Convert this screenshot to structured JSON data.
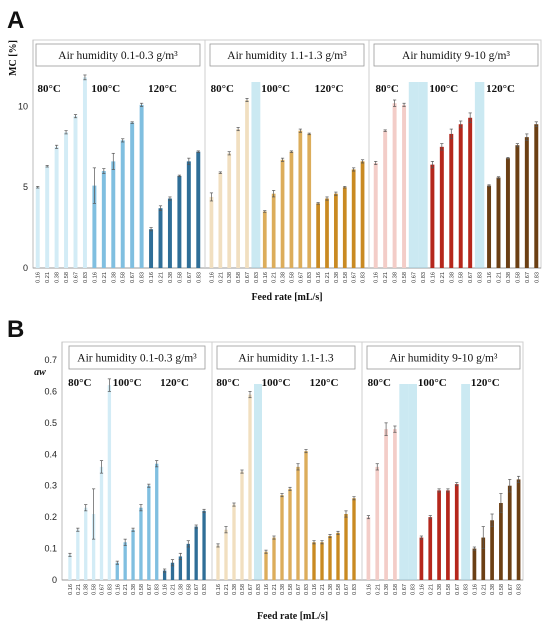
{
  "chart_data": [
    {
      "panel": "A",
      "type": "bar",
      "ylabel": "MC [%]",
      "xlabel": "Feed rate [mL/s]",
      "ylim": [
        0,
        13
      ],
      "yticks": [
        0,
        5,
        10
      ],
      "categories": [
        "0.16",
        "0.21",
        "0.38",
        "0.58",
        "0.67",
        "0.83"
      ],
      "groups": [
        {
          "humidity": "Air humidity 0.1-0.3 g/m³",
          "temperatures": [
            {
              "name": "80°C",
              "color": "#d3ecf6",
              "values": [
                5.0,
                6.3,
                7.5,
                8.4,
                9.4,
                11.8
              ],
              "errors": [
                0.05,
                0.05,
                0.1,
                0.1,
                0.1,
                0.15
              ]
            },
            {
              "name": "100°C",
              "color": "#80bfe0",
              "values": [
                5.1,
                6.0,
                6.6,
                7.9,
                9.0,
                10.1
              ],
              "errors": [
                1.1,
                0.15,
                0.5,
                0.1,
                0.05,
                0.1
              ]
            },
            {
              "name": "120°C",
              "color": "#2f6e97",
              "values": [
                2.4,
                3.7,
                4.3,
                5.7,
                6.6,
                7.2
              ],
              "errors": [
                0.1,
                0.15,
                0.1,
                0.05,
                0.2,
                0.05
              ]
            }
          ]
        },
        {
          "humidity": "Air humidity 1.1-1.3 g/m³",
          "temperatures": [
            {
              "name": "80°C",
              "color": "#f1dfc0",
              "values": [
                4.4,
                5.9,
                7.1,
                8.6,
                10.4,
                0
              ],
              "errors": [
                0.25,
                0.05,
                0.1,
                0.1,
                0.1,
                0
              ]
            },
            {
              "name": "100°C",
              "color": "#dcad5b",
              "values": [
                3.5,
                4.6,
                6.7,
                7.2,
                8.5,
                8.3
              ],
              "errors": [
                0.05,
                0.2,
                0.1,
                0.05,
                0.1,
                0.05
              ]
            },
            {
              "name": "120°C",
              "color": "#c98a22",
              "values": [
                4.0,
                4.3,
                4.6,
                5.0,
                6.1,
                6.6
              ],
              "errors": [
                0.05,
                0.1,
                0.1,
                0.05,
                0.1,
                0.1
              ]
            }
          ]
        },
        {
          "humidity": "Air humidity 9-10 g/m³",
          "temperatures": [
            {
              "name": "80°C",
              "color": "#f3cdc8",
              "values": [
                6.5,
                8.5,
                10.2,
                10.1,
                0,
                0
              ],
              "errors": [
                0.1,
                0.05,
                0.2,
                0.1,
                0,
                0
              ]
            },
            {
              "name": "100°C",
              "color": "#b5271c",
              "values": [
                6.4,
                7.5,
                8.3,
                8.9,
                9.3,
                0
              ],
              "errors": [
                0.2,
                0.2,
                0.3,
                0.2,
                0.3,
                0
              ]
            },
            {
              "name": "120°C",
              "color": "#6b3f14",
              "values": [
                5.1,
                5.6,
                6.8,
                7.6,
                8.1,
                8.9
              ],
              "errors": [
                0.05,
                0.05,
                0.05,
                0.1,
                0.2,
                0.15
              ]
            }
          ]
        }
      ]
    },
    {
      "panel": "B",
      "type": "bar",
      "ylabel": "aw",
      "xlabel": "Feed rate [mL/s]",
      "ylim": [
        0,
        0.7
      ],
      "yticks": [
        0,
        0.1,
        0.2,
        0.3,
        0.4,
        0.5,
        0.6,
        0.7
      ],
      "categories": [
        "0.16",
        "0.21",
        "0.38",
        "0.58",
        "0.67",
        "0.83"
      ],
      "groups": [
        {
          "humidity": "Air humidity 0.1-0.3 g/m³",
          "temperatures": [
            {
              "name": "80°C",
              "color": "#d3ecf6",
              "values": [
                0.08,
                0.16,
                0.23,
                0.21,
                0.36,
                0.62
              ],
              "errors": [
                0.005,
                0.005,
                0.01,
                0.08,
                0.02,
                0.02
              ]
            },
            {
              "name": "100°C",
              "color": "#80bfe0",
              "values": [
                0.055,
                0.12,
                0.16,
                0.23,
                0.3,
                0.37
              ],
              "errors": [
                0.005,
                0.01,
                0.005,
                0.01,
                0.005,
                0.01
              ]
            },
            {
              "name": "120°C",
              "color": "#2f6e97",
              "values": [
                0.03,
                0.055,
                0.075,
                0.115,
                0.17,
                0.22
              ],
              "errors": [
                0.005,
                0.01,
                0.01,
                0.01,
                0.005,
                0.005
              ]
            }
          ]
        },
        {
          "humidity": "Air humidity 1.1-1.3",
          "temperatures": [
            {
              "name": "80°C",
              "color": "#f1dfc0",
              "values": [
                0.11,
                0.16,
                0.24,
                0.345,
                0.59,
                0
              ],
              "errors": [
                0.005,
                0.01,
                0.005,
                0.005,
                0.01,
                0
              ]
            },
            {
              "name": "100°C",
              "color": "#dcad5b",
              "values": [
                0.09,
                0.135,
                0.27,
                0.29,
                0.36,
                0.41
              ],
              "errors": [
                0.005,
                0.005,
                0.005,
                0.005,
                0.01,
                0.005
              ]
            },
            {
              "name": "120°C",
              "color": "#c98a22",
              "values": [
                0.12,
                0.12,
                0.14,
                0.15,
                0.21,
                0.26
              ],
              "errors": [
                0.005,
                0.005,
                0.005,
                0.005,
                0.01,
                0.005
              ]
            }
          ]
        },
        {
          "humidity": "Air humidity 9-10 g/m³",
          "temperatures": [
            {
              "name": "80°C",
              "color": "#f3cdc8",
              "values": [
                0.2,
                0.36,
                0.48,
                0.48,
                0,
                0
              ],
              "errors": [
                0.005,
                0.01,
                0.02,
                0.01,
                0,
                0
              ]
            },
            {
              "name": "100°C",
              "color": "#b5271c",
              "values": [
                0.135,
                0.2,
                0.285,
                0.285,
                0.305,
                0
              ],
              "errors": [
                0.005,
                0.005,
                0.005,
                0.005,
                0.005,
                0
              ]
            },
            {
              "name": "120°C",
              "color": "#6b3f14",
              "values": [
                0.1,
                0.135,
                0.19,
                0.245,
                0.3,
                0.32
              ],
              "errors": [
                0.005,
                0.035,
                0.02,
                0.03,
                0.02,
                0.01
              ]
            }
          ]
        }
      ]
    }
  ]
}
